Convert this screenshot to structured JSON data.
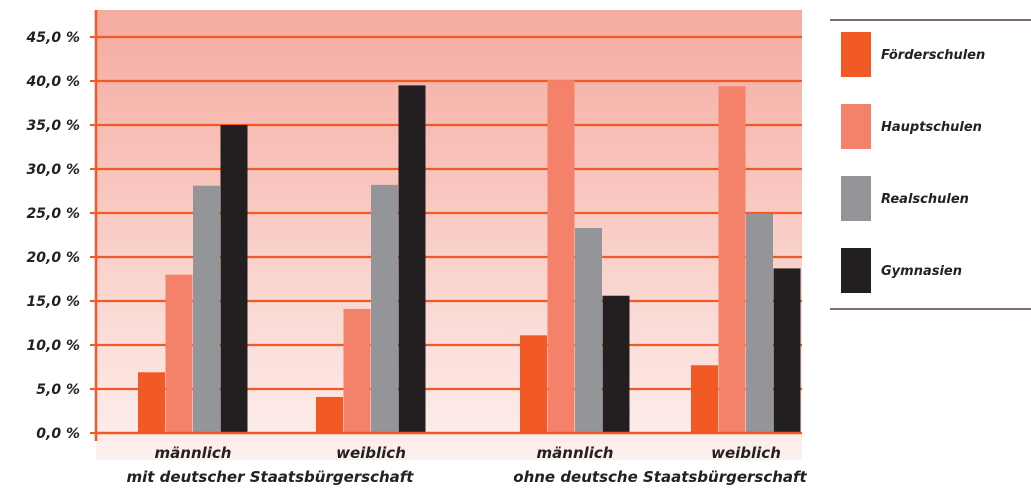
{
  "chart_data": {
    "type": "bar",
    "groups": [
      {
        "label": "männlich",
        "group_label": "mit deutscher Staatsbürgerschaft"
      },
      {
        "label": "weiblich",
        "group_label": "mit deutscher Staatsbürgerschaft"
      },
      {
        "label": "männlich",
        "group_label": "ohne deutsche Staatsbürgerschaft"
      },
      {
        "label": "weiblich",
        "group_label": "ohne deutsche Staatsbürgerschaft"
      }
    ],
    "group_labels": [
      "mit deutscher Staatsbürgerschaft",
      "ohne deutsche Staatsbürgerschaft"
    ],
    "categories": [
      "männlich",
      "weiblich",
      "männlich",
      "weiblich"
    ],
    "series": [
      {
        "name": "Förderschulen",
        "color": "#f15a24",
        "values": [
          6.9,
          4.1,
          11.1,
          7.7
        ]
      },
      {
        "name": "Hauptschulen",
        "color": "#f4826b",
        "values": [
          18.0,
          14.1,
          40.1,
          39.4
        ]
      },
      {
        "name": "Realschulen",
        "color": "#939598",
        "values": [
          28.1,
          28.2,
          23.3,
          24.9
        ]
      },
      {
        "name": "Gymnasien",
        "color": "#231f20",
        "values": [
          35.0,
          39.5,
          15.6,
          18.7
        ]
      }
    ],
    "ylim": [
      0,
      45
    ],
    "yticks": [
      "0,0 %",
      "5,0 %",
      "10,0 %",
      "15,0 %",
      "20,0 %",
      "25,0 %",
      "30,0 %",
      "35,0 %",
      "40,0 %",
      "45,0 %"
    ],
    "grid": true,
    "legend_position": "right",
    "colors": {
      "axis": "#f15a24",
      "grid": "#f15a24",
      "bg_top": "#f5aba0",
      "bg_bottom": "#fdf0ee",
      "legend_rule": "#5a3a3a"
    }
  }
}
